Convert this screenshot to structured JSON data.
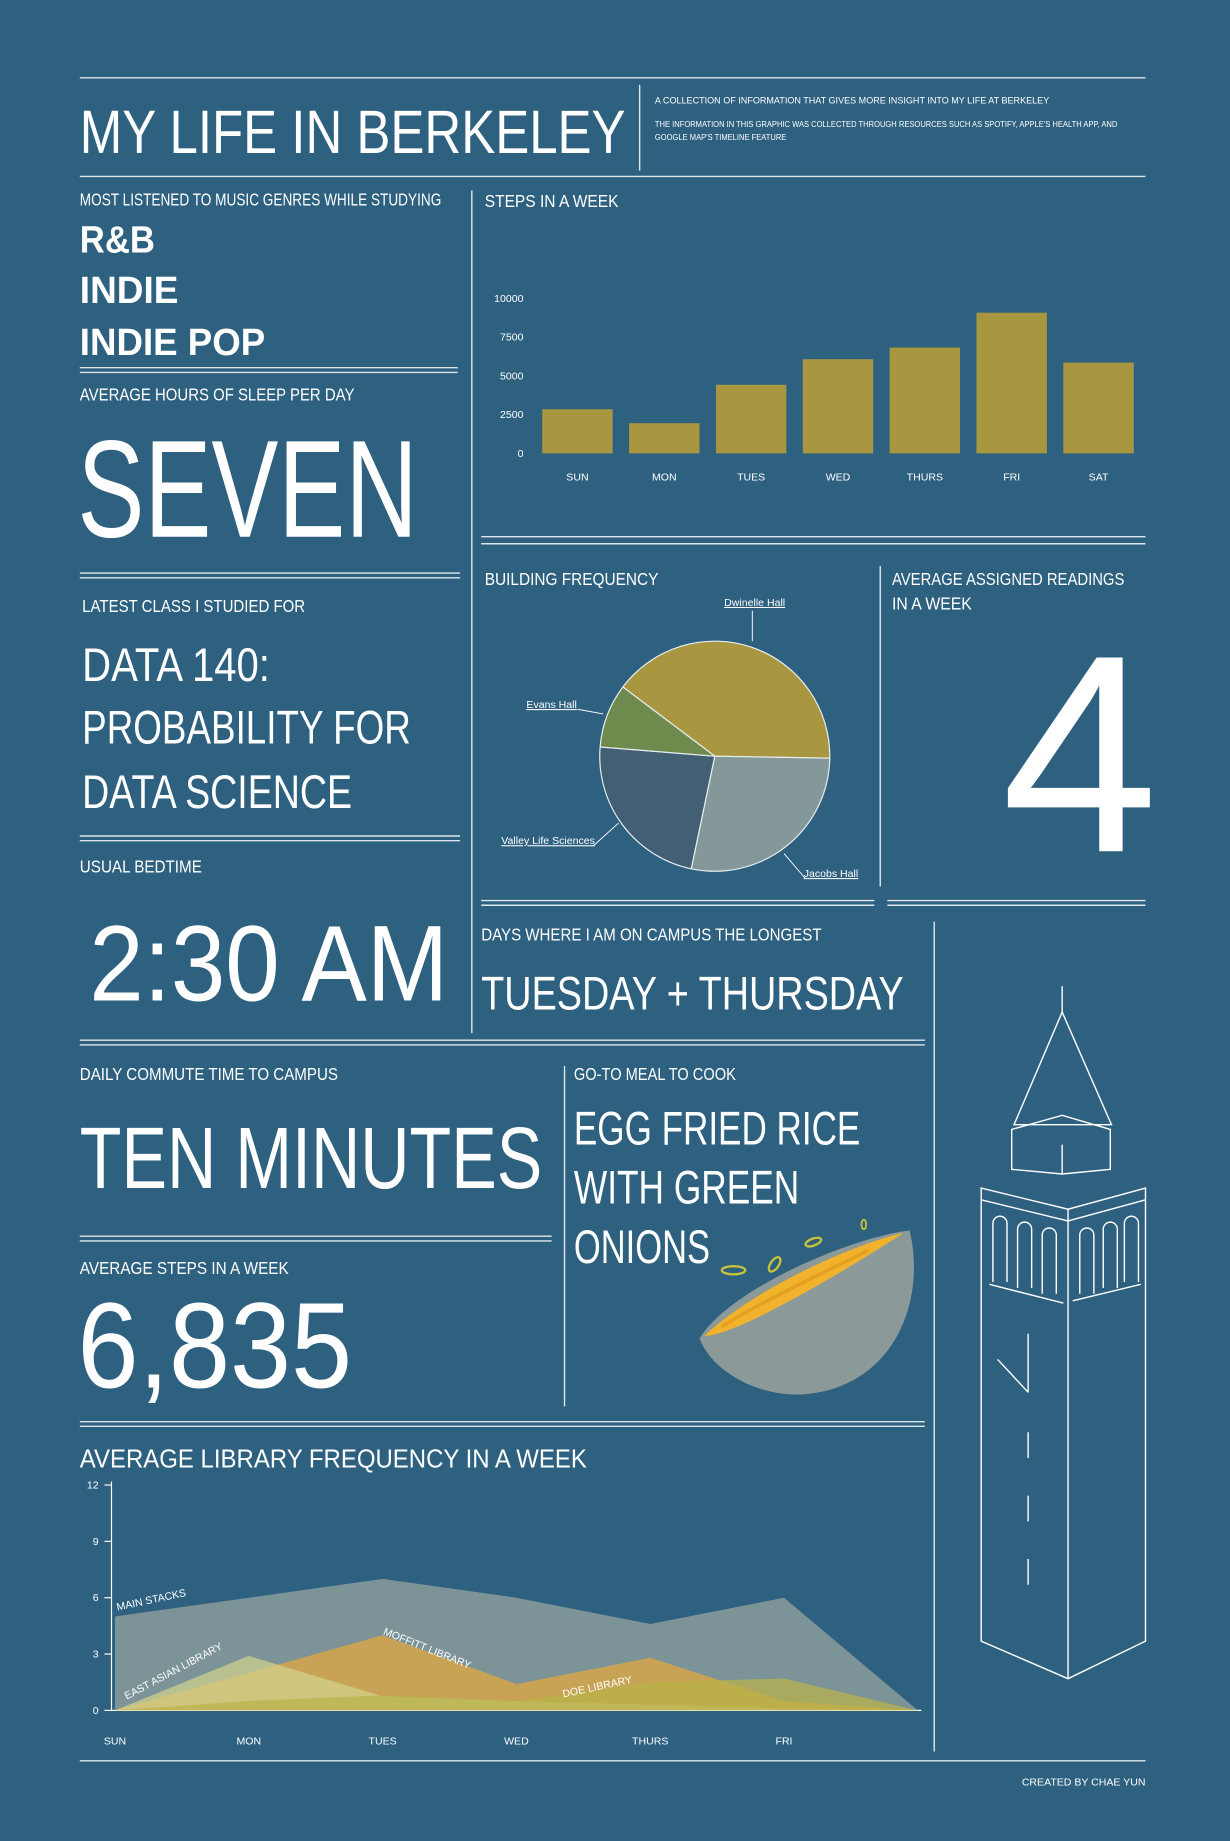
{
  "header": {
    "title": "MY LIFE IN BERKELEY",
    "subtitle": "A COLLECTION OF INFORMATION THAT GIVES MORE INSIGHT INTO MY LIFE AT BERKELEY",
    "note_lines": [
      "THE INFORMATION IN THIS GRAPHIC WAS COLLECTED THROUGH RESOURCES SUCH AS SPOTIFY, APPLE'S HEALTH APP, AND",
      "GOOGLE MAP'S TIMELINE FEATURE"
    ]
  },
  "music": {
    "label": "MOST LISTENED TO MUSIC GENRES WHILE STUDYING",
    "items": [
      "R&B",
      "INDIE",
      "INDIE POP"
    ]
  },
  "sleep": {
    "label": "AVERAGE HOURS OF SLEEP PER DAY",
    "value": "SEVEN"
  },
  "class": {
    "label": "LATEST CLASS I STUDIED FOR",
    "lines": [
      "DATA 140:",
      "PROBABILITY FOR",
      "DATA SCIENCE"
    ]
  },
  "bedtime": {
    "label": "USUAL BEDTIME",
    "value": "2:30 AM"
  },
  "commute": {
    "label": "DAILY COMMUTE TIME TO CAMPUS",
    "value": "TEN MINUTES"
  },
  "avg_steps": {
    "label": "AVERAGE STEPS IN A WEEK",
    "value": "6,835"
  },
  "readings": {
    "label_lines": [
      "AVERAGE ASSIGNED READINGS",
      "IN A WEEK"
    ],
    "value": "4"
  },
  "campus_days": {
    "label": "DAYS WHERE I AM ON CAMPUS THE LONGEST",
    "value": "TUESDAY + THURSDAY"
  },
  "meal": {
    "label": "GO-TO MEAL TO COOK",
    "lines": [
      "EGG FRIED RICE",
      "WITH GREEN",
      "ONIONS"
    ]
  },
  "footer": "CREATED BY CHAE YUN",
  "chart_data": [
    {
      "type": "bar",
      "title": "STEPS IN A WEEK",
      "categories": [
        "SUN",
        "MON",
        "TUES",
        "WED",
        "THURS",
        "FRI",
        "SAT"
      ],
      "values": [
        2850,
        1950,
        4430,
        6080,
        6830,
        9080,
        5860
      ],
      "color": "#a89640",
      "ylim": [
        0,
        10000
      ],
      "yticks": [
        0,
        2500,
        5000,
        7500,
        10000
      ]
    },
    {
      "type": "pie",
      "title": "BUILDING  FREQUENCY",
      "categories": [
        "Dwinelle Hall",
        "Jacobs Hall",
        "Valley Life Sciences",
        "Evans Hall"
      ],
      "values": [
        40,
        28,
        23,
        9
      ],
      "colors": [
        "#a89640",
        "#859899",
        "#435f74",
        "#6e8a4c"
      ]
    },
    {
      "type": "area",
      "title": "AVERAGE LIBRARY FREQUENCY IN A WEEK",
      "categories": [
        "SUN",
        "MON",
        "TUES",
        "WED",
        "THURS",
        "FRI",
        null
      ],
      "ylim": [
        0,
        12
      ],
      "yticks": [
        0,
        3,
        6,
        9,
        12
      ],
      "series": [
        {
          "name": "MAIN STACKS",
          "color": "#9ba6a1",
          "values": [
            5,
            6,
            7,
            6,
            4.6,
            6,
            0
          ]
        },
        {
          "name": "MOFFITT LIBRARY",
          "color": "#e6a93c",
          "values": [
            0,
            2,
            4,
            1.4,
            2.8,
            0.5,
            0
          ]
        },
        {
          "name": "EAST ASIAN LIBRARY",
          "color": "#d3d28e",
          "values": [
            0,
            2.9,
            0.75,
            0.5,
            0.3,
            0.1,
            0
          ]
        },
        {
          "name": "DOE LIBRARY",
          "color": "#b8b34a",
          "values": [
            0,
            0.5,
            0.8,
            0.5,
            1.5,
            1.7,
            0
          ]
        }
      ]
    }
  ]
}
